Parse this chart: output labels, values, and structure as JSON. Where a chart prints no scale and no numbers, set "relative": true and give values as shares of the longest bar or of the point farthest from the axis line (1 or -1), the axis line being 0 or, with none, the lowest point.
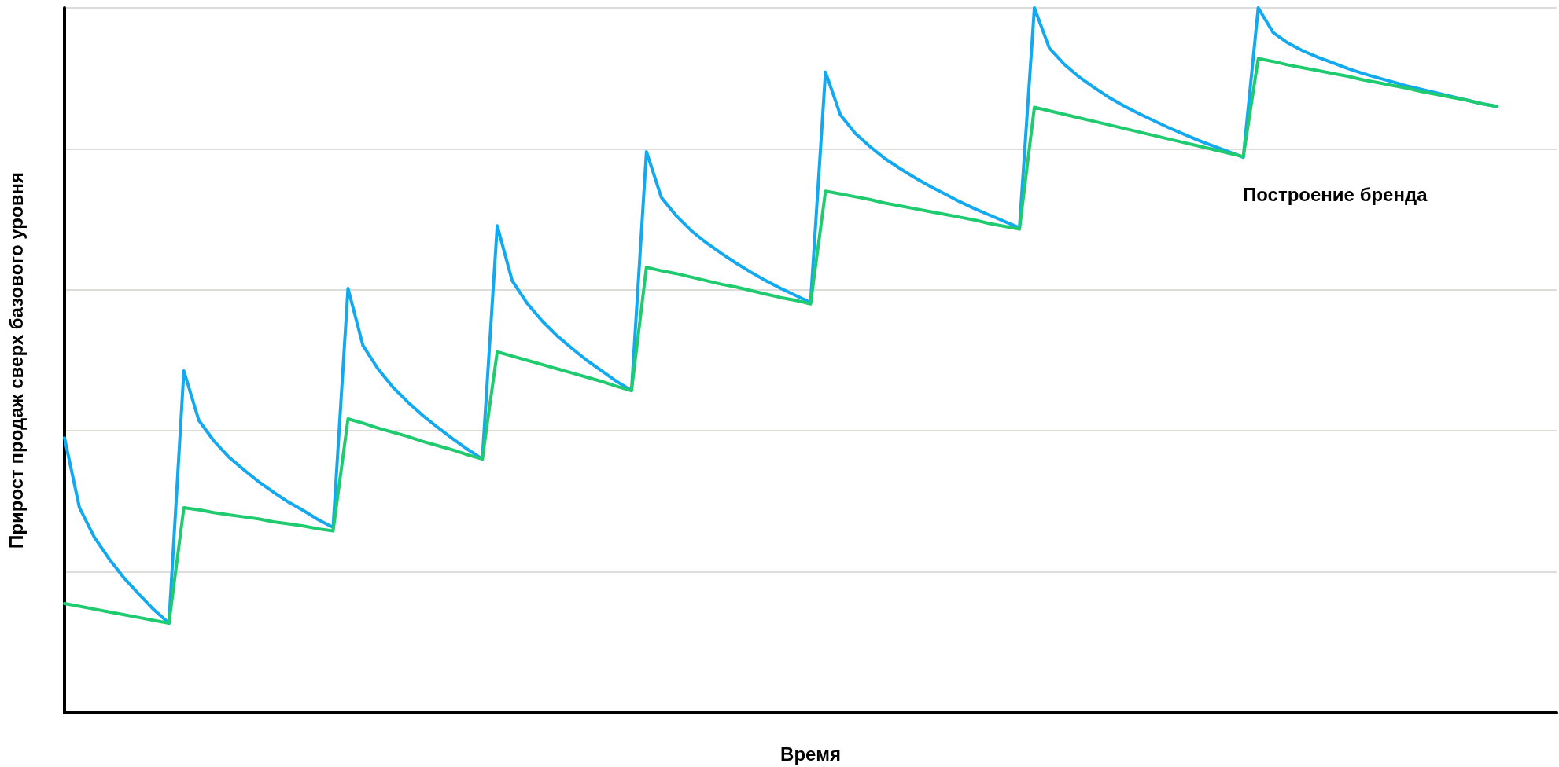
{
  "chart_data": {
    "type": "line",
    "xlabel": "Время",
    "ylabel": "Прирост продаж сверх базового уровня",
    "relative": true,
    "grid": "y",
    "marker": "none",
    "line_style": "solid",
    "annotations": [
      "Построение бренда"
    ],
    "categories": [
      null,
      null,
      null,
      null,
      null,
      null,
      null,
      null,
      null,
      null,
      null,
      null,
      null,
      null,
      null,
      null,
      null,
      null,
      null,
      null,
      null,
      null,
      null,
      null,
      null,
      null,
      null,
      null,
      null,
      null,
      null,
      null,
      null,
      null,
      null,
      null,
      null,
      null,
      null,
      null,
      null,
      null,
      null,
      null,
      null,
      null,
      null,
      null,
      null,
      null,
      null,
      null,
      null,
      null,
      null,
      null,
      null,
      null,
      null,
      null,
      null,
      null,
      null,
      null,
      null,
      null,
      null,
      null,
      null,
      null,
      null,
      null,
      null,
      null,
      null,
      null,
      null,
      null,
      null,
      null,
      null,
      null,
      null,
      null,
      null,
      null,
      null,
      null,
      null,
      null,
      null,
      null,
      null,
      null,
      null,
      null,
      null,
      null,
      null,
      null,
      null
    ],
    "series": [
      {
        "color": "#12a9f0",
        "values": [
          0.39,
          0.291,
          0.249,
          0.218,
          0.191,
          0.168,
          0.146,
          0.127,
          0.485,
          0.415,
          0.386,
          0.363,
          0.345,
          0.328,
          0.313,
          0.299,
          0.287,
          0.274,
          0.263,
          0.602,
          0.521,
          0.488,
          0.462,
          0.441,
          0.422,
          0.405,
          0.389,
          0.374,
          0.36,
          0.691,
          0.613,
          0.581,
          0.556,
          0.535,
          0.517,
          0.5,
          0.485,
          0.47,
          0.457,
          0.796,
          0.731,
          0.705,
          0.684,
          0.667,
          0.652,
          0.638,
          0.625,
          0.613,
          0.602,
          0.592,
          0.582,
          0.909,
          0.848,
          0.822,
          0.803,
          0.786,
          0.772,
          0.759,
          0.747,
          0.736,
          0.725,
          0.715,
          0.706,
          0.697,
          0.688,
          1,
          0.943,
          0.92,
          0.902,
          0.887,
          0.873,
          0.861,
          0.85,
          0.84,
          0.83,
          0.821,
          0.812,
          0.804,
          0.796,
          0.788,
          1,
          0.965,
          0.95,
          0.939,
          0.93,
          0.922,
          0.914,
          0.907,
          0.901,
          0.895,
          0.889,
          0.884,
          0.879,
          0.874,
          0.869,
          0.864,
          0.86,
          null,
          null,
          null,
          null
        ]
      },
      {
        "color": "#1fcb6e",
        "values": [
          0.155,
          0.151,
          0.147,
          0.143,
          0.139,
          0.135,
          0.131,
          0.127,
          0.291,
          0.288,
          0.284,
          0.281,
          0.278,
          0.275,
          0.271,
          0.268,
          0.265,
          0.261,
          0.258,
          0.417,
          0.411,
          0.404,
          0.398,
          0.392,
          0.385,
          0.379,
          0.373,
          0.366,
          0.36,
          0.512,
          0.506,
          0.5,
          0.494,
          0.488,
          0.482,
          0.476,
          0.47,
          0.463,
          0.457,
          0.632,
          0.627,
          0.623,
          0.618,
          0.613,
          0.608,
          0.604,
          0.599,
          0.594,
          0.589,
          0.585,
          0.58,
          0.74,
          0.736,
          0.732,
          0.728,
          0.723,
          0.719,
          0.715,
          0.711,
          0.707,
          0.703,
          0.699,
          0.694,
          0.69,
          0.686,
          0.859,
          0.854,
          0.849,
          0.844,
          0.839,
          0.834,
          0.829,
          0.824,
          0.819,
          0.814,
          0.809,
          0.804,
          0.799,
          0.794,
          0.789,
          0.928,
          0.924,
          0.919,
          0.915,
          0.911,
          0.907,
          0.903,
          0.898,
          0.894,
          0.89,
          0.886,
          0.881,
          0.877,
          0.873,
          0.869,
          0.864,
          0.86,
          null,
          null,
          null,
          null
        ]
      }
    ]
  }
}
